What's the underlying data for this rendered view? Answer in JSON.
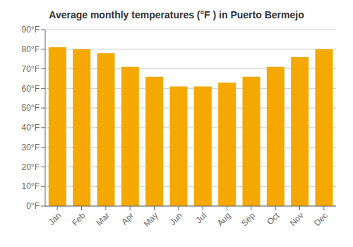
{
  "chart_data": {
    "type": "bar",
    "title": "Average monthly temperatures (°F ) in Puerto Bermejo",
    "categories": [
      "Jan",
      "Feb",
      "Mar",
      "Apr",
      "May",
      "Jun",
      "Jul",
      "Aug",
      "Sep",
      "Oct",
      "Nov",
      "Dec"
    ],
    "values": [
      81,
      80,
      78,
      71,
      66,
      61,
      61,
      63,
      66,
      71,
      76,
      80
    ],
    "color": "#F5A800",
    "ylim": [
      0,
      90
    ],
    "yticks": [
      {
        "value": 0,
        "label": "0°F"
      },
      {
        "value": 10,
        "label": "10°F"
      },
      {
        "value": 20,
        "label": "20°F"
      },
      {
        "value": 30,
        "label": "30°F"
      },
      {
        "value": 40,
        "label": "40°F"
      },
      {
        "value": 50,
        "label": "50°F"
      },
      {
        "value": 60,
        "label": "60°F"
      },
      {
        "value": 70,
        "label": "70°F"
      },
      {
        "value": 80,
        "label": "80°F"
      },
      {
        "value": 90,
        "label": "90°F"
      }
    ],
    "grid": true
  }
}
